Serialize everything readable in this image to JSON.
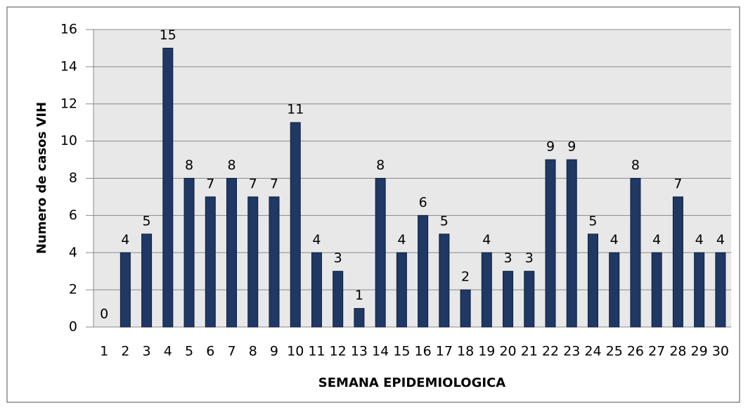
{
  "chart_data": {
    "type": "bar",
    "categories": [
      "1",
      "2",
      "3",
      "4",
      "5",
      "6",
      "7",
      "8",
      "9",
      "10",
      "11",
      "12",
      "13",
      "14",
      "15",
      "16",
      "17",
      "18",
      "19",
      "20",
      "21",
      "22",
      "23",
      "24",
      "25",
      "26",
      "27",
      "28",
      "29",
      "30"
    ],
    "values": [
      0,
      4,
      5,
      15,
      8,
      7,
      8,
      7,
      7,
      11,
      4,
      3,
      1,
      8,
      4,
      6,
      5,
      2,
      4,
      3,
      3,
      9,
      9,
      5,
      4,
      8,
      4,
      7,
      4,
      4
    ],
    "color": "#1f3864",
    "x_label": "SEMANA EPIDEMIOLOGICA",
    "y_label": "Numero de casos VIH",
    "ylim": [
      0,
      16
    ],
    "yticks": [
      0,
      2,
      4,
      6,
      8,
      10,
      12,
      14,
      16
    ],
    "grid": true
  }
}
